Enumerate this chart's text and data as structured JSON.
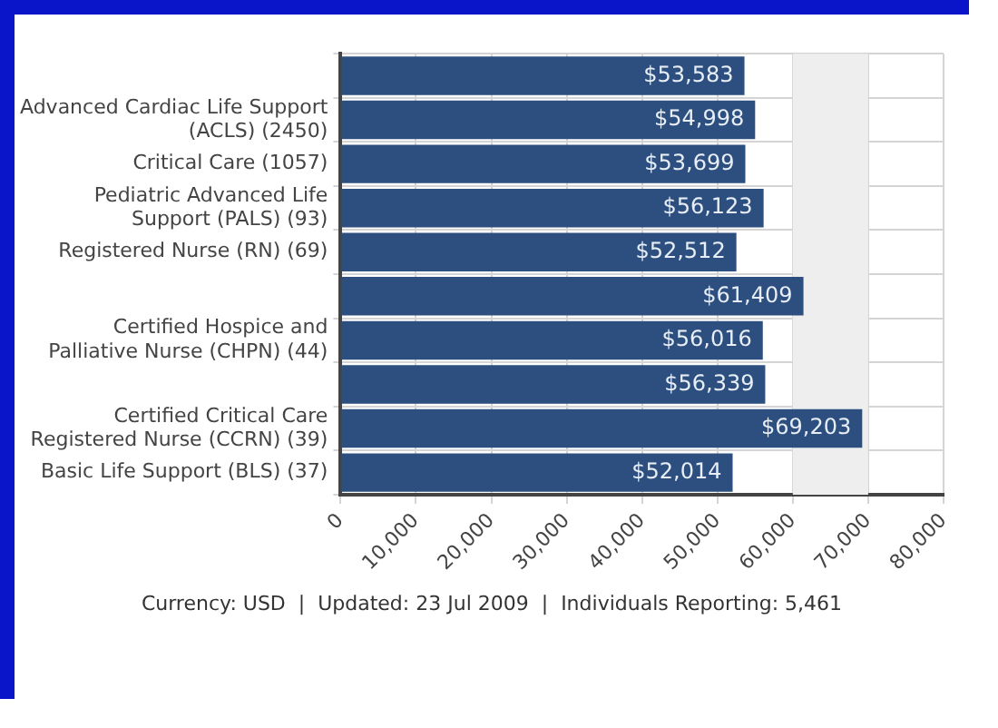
{
  "chart_data": {
    "type": "bar",
    "orientation": "horizontal",
    "categories": [
      null,
      "Advanced Cardiac Life Support (ACLS) (2450)",
      "Critical Care (1057)",
      "Pediatric Advanced Life Support (PALS) (93)",
      "Registered Nurse (RN) (69)",
      null,
      "Certified Hospice and Palliative Nurse (CHPN) (44)",
      null,
      "Certified Critical Care Registered Nurse (CCRN) (39)",
      "Basic Life Support (BLS) (37)"
    ],
    "values": [
      53583,
      54998,
      53699,
      56123,
      52512,
      61409,
      56016,
      56339,
      69203,
      52014
    ],
    "value_labels": [
      "$53,583",
      "$54,998",
      "$53,699",
      "$56,123",
      "$52,512",
      "$61,409",
      "$56,016",
      "$56,339",
      "$69,203",
      "$52,014"
    ],
    "color": "#2c4f7f",
    "xlim": [
      0,
      80000
    ],
    "xticks": [
      {
        "value": 0,
        "label": "0"
      },
      {
        "value": 10000,
        "label": "10,000"
      },
      {
        "value": 20000,
        "label": "20,000"
      },
      {
        "value": 30000,
        "label": "30,000"
      },
      {
        "value": 40000,
        "label": "40,000"
      },
      {
        "value": 50000,
        "label": "50,000"
      },
      {
        "value": 60000,
        "label": "60,000"
      },
      {
        "value": 70000,
        "label": "70,000"
      },
      {
        "value": 80000,
        "label": "80,000"
      }
    ],
    "bands": [
      {
        "axis": "x",
        "from": 60000,
        "to": 70000,
        "color": "#eeeeee"
      }
    ],
    "grid": true,
    "legend": false,
    "annotations": [
      "Currency: USD  |  Updated: 23 Jul 2009  |  Individuals Reporting: 5,461"
    ]
  }
}
